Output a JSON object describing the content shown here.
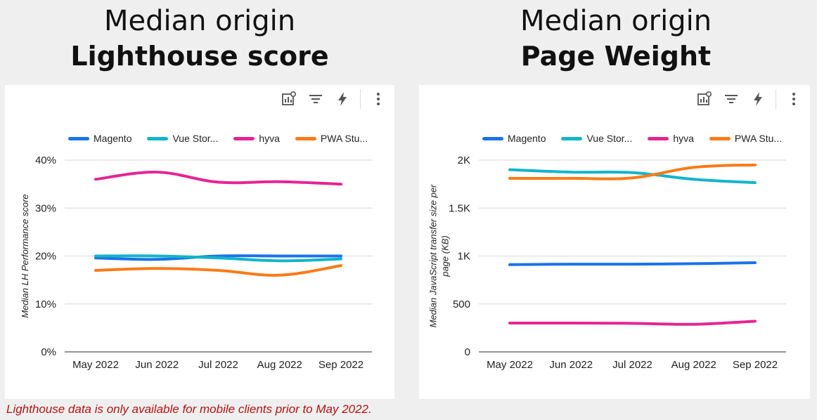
{
  "headings": {
    "left": {
      "line1": "Median origin",
      "line2": "Lighthouse score"
    },
    "right": {
      "line1": "Median origin",
      "line2": "Page Weight"
    }
  },
  "toolbar_icons": [
    "explore-chart-icon",
    "filter-icon",
    "lightning-icon",
    "more-vert-icon"
  ],
  "chart_data": [
    {
      "type": "line",
      "title": "",
      "xlabel": "",
      "ylabel": "Median LH Performance score",
      "categories": [
        "May 2022",
        "Jun 2022",
        "Jul 2022",
        "Aug 2022",
        "Sep 2022"
      ],
      "y_tick_labels": [
        "0%",
        "10%",
        "20%",
        "30%",
        "40%"
      ],
      "ylim": [
        0,
        40
      ],
      "grid": true,
      "legend_position": "top",
      "series": [
        {
          "name": "Magento",
          "legend_label": "Magento",
          "color": "#1a73e8",
          "values": [
            19.6,
            19.3,
            20.0,
            20.0,
            20.0
          ]
        },
        {
          "name": "Vue Storefront",
          "legend_label": "Vue Stor...",
          "color": "#12b5cb",
          "values": [
            20.0,
            20.0,
            19.6,
            19.0,
            19.4
          ]
        },
        {
          "name": "hyva",
          "legend_label": "hyva",
          "color": "#e52592",
          "values": [
            36.0,
            37.5,
            35.4,
            35.5,
            35.0
          ]
        },
        {
          "name": "PWA Studio",
          "legend_label": "PWA Stu...",
          "color": "#fa7b17",
          "values": [
            17.0,
            17.4,
            17.0,
            16.0,
            18.0
          ]
        }
      ]
    },
    {
      "type": "line",
      "title": "",
      "xlabel": "",
      "ylabel": "Median JavaScript transfer size per page (KB)",
      "ylabel_lines": [
        "Median JavaScript transfer size per",
        "page (KB)"
      ],
      "categories": [
        "May 2022",
        "Jun 2022",
        "Jul 2022",
        "Aug 2022",
        "Sep 2022"
      ],
      "y_tick_labels": [
        "0",
        "500",
        "1K",
        "1.5K",
        "2K"
      ],
      "ylim": [
        0,
        2000
      ],
      "grid": true,
      "legend_position": "top",
      "series": [
        {
          "name": "Magento",
          "legend_label": "Magento",
          "color": "#1a73e8",
          "values": [
            910,
            915,
            915,
            920,
            930
          ]
        },
        {
          "name": "Vue Storefront",
          "legend_label": "Vue Stor...",
          "color": "#12b5cb",
          "values": [
            1900,
            1875,
            1870,
            1800,
            1765
          ]
        },
        {
          "name": "hyva",
          "legend_label": "hyva",
          "color": "#e52592",
          "values": [
            300,
            300,
            298,
            288,
            320
          ]
        },
        {
          "name": "PWA Studio",
          "legend_label": "PWA Stu...",
          "color": "#fa7b17",
          "values": [
            1810,
            1810,
            1815,
            1925,
            1950
          ]
        }
      ]
    }
  ],
  "footnote": "Lighthouse data is only available for mobile clients prior to May 2022."
}
